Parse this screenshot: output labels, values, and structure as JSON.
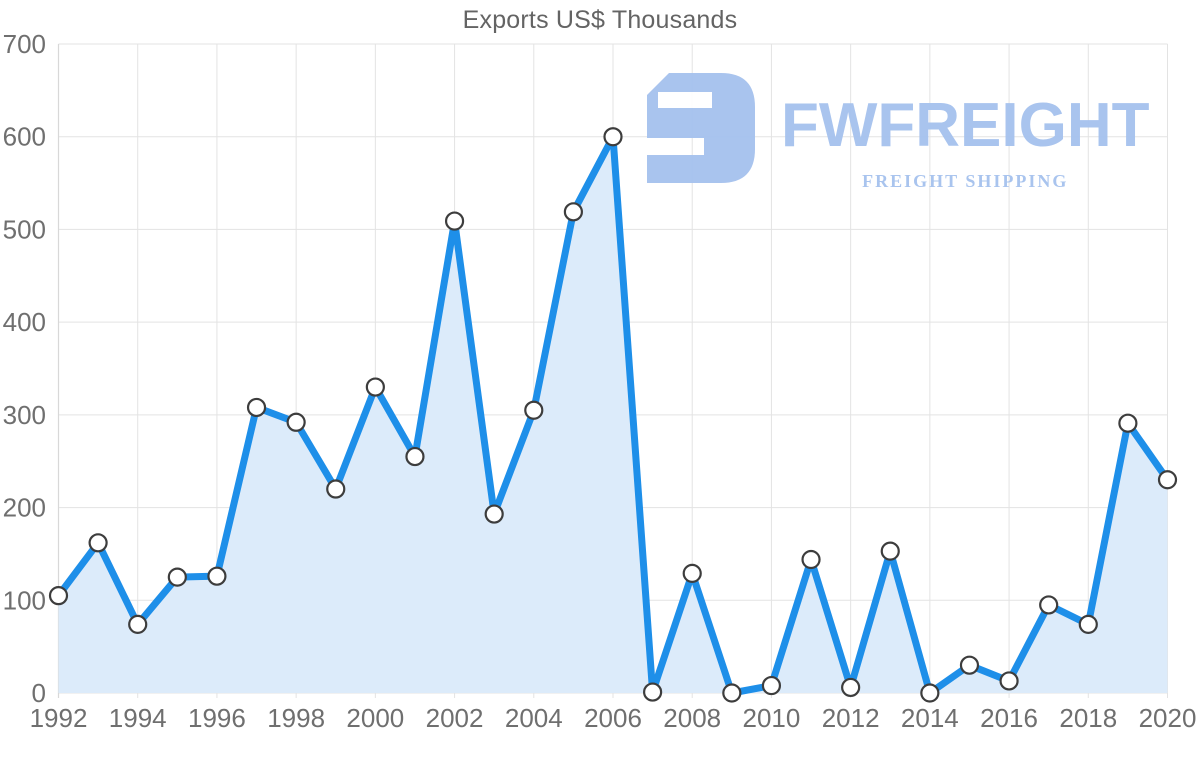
{
  "watermark": {
    "brand": "FWFREIGHT",
    "tagline": "FREIGHT SHIPPING",
    "logo_icon": "fwfreight-logo-mark",
    "color": "#a6c2ee"
  },
  "chart_data": {
    "type": "area",
    "title": "Exports US$ Thousands",
    "xlabel": "",
    "ylabel": "",
    "x": [
      1992,
      1993,
      1994,
      1995,
      1996,
      1997,
      1998,
      1999,
      2000,
      2001,
      2002,
      2003,
      2004,
      2005,
      2006,
      2007,
      2008,
      2009,
      2010,
      2011,
      2012,
      2013,
      2014,
      2015,
      2016,
      2017,
      2018,
      2019,
      2020
    ],
    "series": [
      {
        "name": "Exports US$ Thousands",
        "values": [
          105,
          162,
          74,
          125,
          126,
          308,
          292,
          220,
          330,
          255,
          509,
          193,
          305,
          519,
          600,
          1,
          129,
          0,
          8,
          144,
          6,
          153,
          0,
          30,
          13,
          95,
          74,
          291,
          230
        ]
      }
    ],
    "ylim": [
      0,
      700
    ],
    "yticks": [
      0,
      100,
      200,
      300,
      400,
      500,
      600,
      700
    ],
    "xticks": [
      1992,
      1994,
      1996,
      1998,
      2000,
      2002,
      2004,
      2006,
      2008,
      2010,
      2012,
      2014,
      2016,
      2018,
      2020
    ],
    "grid": true,
    "legend_position": "none",
    "marker_shape": "circle",
    "colors": {
      "line": "#1e8fe9",
      "fill": "#dcebfa",
      "grid": "#e3e3e3",
      "axis": "#d8d8d8",
      "axis_text": "#6f6f6f",
      "title_text": "#646464",
      "marker_fill": "#ffffff",
      "marker_stroke": "#3d3d3d"
    }
  }
}
